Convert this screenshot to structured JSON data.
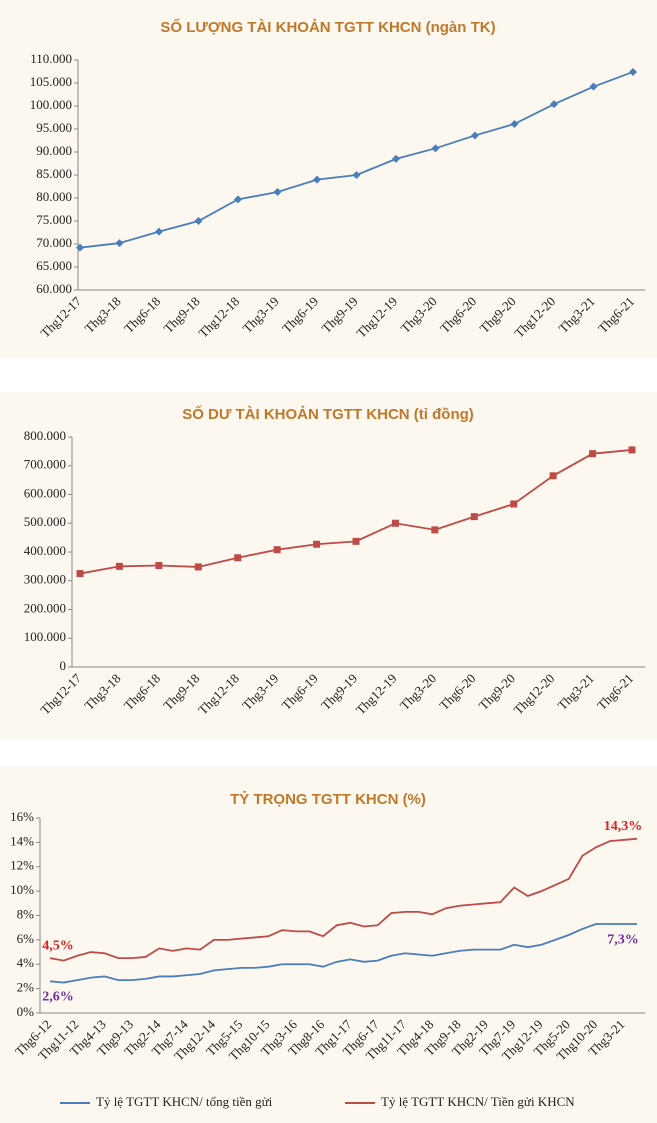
{
  "chart_data": [
    {
      "type": "line",
      "title": "SỐ LƯỢNG TÀI KHOẢN TGTT KHCN (ngàn TK)",
      "categories": [
        "Thg12-17",
        "Thg3-18",
        "Thg6-18",
        "Thg9-18",
        "Thg12-18",
        "Thg3-19",
        "Thg6-19",
        "Thg9-19",
        "Thg12-19",
        "Thg3-20",
        "Thg6-20",
        "Thg9-20",
        "Thg12-20",
        "Thg3-21",
        "Thg6-21"
      ],
      "values": [
        69200,
        70200,
        72700,
        75000,
        79700,
        81300,
        84000,
        85000,
        88500,
        90800,
        93600,
        96100,
        100400,
        104200,
        107400
      ],
      "color": "#4a7ebb",
      "marker": "diamond",
      "ylim": [
        60000,
        110000
      ],
      "yticks": [
        {
          "value": 60000,
          "label": "60.000"
        },
        {
          "value": 65000,
          "label": "65.000"
        },
        {
          "value": 70000,
          "label": "70.000"
        },
        {
          "value": 75000,
          "label": "75.000"
        },
        {
          "value": 80000,
          "label": "80.000"
        },
        {
          "value": 85000,
          "label": "85.000"
        },
        {
          "value": 90000,
          "label": "90.000"
        },
        {
          "value": 95000,
          "label": "95.000"
        },
        {
          "value": 100000,
          "label": "100.000"
        },
        {
          "value": 105000,
          "label": "105.000"
        },
        {
          "value": 110000,
          "label": "110.000"
        }
      ]
    },
    {
      "type": "line",
      "title": "SỐ DƯ TÀI KHOẢN TGTT KHCN (tỉ đồng)",
      "categories": [
        "Thg12-17",
        "Thg3-18",
        "Thg6-18",
        "Thg9-18",
        "Thg12-18",
        "Thg3-19",
        "Thg6-19",
        "Thg9-19",
        "Thg12-19",
        "Thg3-20",
        "Thg6-20",
        "Thg9-20",
        "Thg12-20",
        "Thg3-21",
        "Thg6-21"
      ],
      "values": [
        325000,
        350000,
        353000,
        348000,
        380000,
        408000,
        427000,
        437000,
        500000,
        477000,
        523000,
        567000,
        665000,
        742000,
        755000
      ],
      "color": "#be4b48",
      "marker": "square",
      "ylim": [
        0,
        800000
      ],
      "yticks": [
        0,
        {
          "value": 100000,
          "label": "100.000"
        },
        {
          "value": 200000,
          "label": "200.000"
        },
        {
          "value": 300000,
          "label": "300.000"
        },
        {
          "value": 400000,
          "label": "400.000"
        },
        {
          "value": 500000,
          "label": "500.000"
        },
        {
          "value": 600000,
          "label": "600.000"
        },
        {
          "value": 700000,
          "label": "700.000"
        },
        {
          "value": 800000,
          "label": "800.000"
        }
      ]
    },
    {
      "type": "line",
      "title": "TỶ TRỌNG TGTT KHCN (%)",
      "categories": [
        "Thg6-12",
        null,
        "Thg11-12",
        null,
        "Thg4-13",
        null,
        "Thg9-13",
        null,
        "Thg2-14",
        null,
        "Thg7-14",
        null,
        "Thg12-14",
        null,
        "Thg5-15",
        null,
        "Thg10-15",
        null,
        "Thg3-16",
        null,
        "Thg8-16",
        null,
        "Thg1-17",
        null,
        "Thg6-17",
        null,
        "Thg11-17",
        null,
        "Thg4-18",
        null,
        "Thg9-18",
        null,
        "Thg2-19",
        null,
        "Thg7-19",
        null,
        "Thg12-19",
        null,
        "Thg5-20",
        null,
        "Thg10-20",
        null,
        "Thg3-21",
        null
      ],
      "series": [
        {
          "name": "Tỷ lệ TGTT KHCN/ tổng tiền gửi",
          "color": "#4a7ebb",
          "label_color": "#7030a0",
          "values": [
            2.6,
            2.5,
            2.7,
            2.9,
            3.0,
            2.7,
            2.7,
            2.8,
            3.0,
            3.0,
            3.1,
            3.2,
            3.5,
            3.6,
            3.7,
            3.7,
            3.8,
            4.0,
            4.0,
            4.0,
            3.8,
            4.2,
            4.4,
            4.2,
            4.3,
            4.7,
            4.9,
            4.8,
            4.7,
            4.9,
            5.1,
            5.2,
            5.2,
            5.2,
            5.6,
            5.4,
            5.6,
            6.0,
            6.4,
            6.9,
            7.3,
            7.3,
            7.3,
            7.3
          ],
          "value_labels": [
            "2,6%",
            null,
            null,
            null,
            null,
            null,
            null,
            null,
            null,
            null,
            null,
            null,
            null,
            null,
            null,
            null,
            null,
            null,
            null,
            null,
            null,
            null,
            null,
            null,
            null,
            null,
            null,
            null,
            null,
            null,
            null,
            null,
            null,
            null,
            null,
            null,
            null,
            null,
            null,
            null,
            null,
            null,
            null,
            "7,3%"
          ]
        },
        {
          "name": "Tỷ lệ TGTT KHCN/ Tiền gửi KHCN",
          "color": "#be4b48",
          "label_color": "#e02020",
          "values": [
            4.5,
            4.3,
            4.7,
            5.0,
            4.9,
            4.5,
            4.5,
            4.6,
            5.3,
            5.1,
            5.3,
            5.2,
            6.0,
            6.0,
            6.1,
            6.2,
            6.3,
            6.8,
            6.7,
            6.7,
            6.3,
            7.2,
            7.4,
            7.1,
            7.2,
            8.2,
            8.3,
            8.3,
            8.1,
            8.6,
            8.8,
            8.9,
            9.0,
            9.1,
            10.3,
            9.6,
            10.0,
            10.5,
            11.0,
            12.9,
            13.6,
            14.1,
            14.2,
            14.3
          ],
          "value_labels": [
            "4,5%",
            null,
            null,
            null,
            null,
            null,
            null,
            null,
            null,
            null,
            null,
            null,
            null,
            null,
            null,
            null,
            null,
            null,
            null,
            null,
            null,
            null,
            null,
            null,
            null,
            null,
            null,
            null,
            null,
            null,
            null,
            null,
            null,
            null,
            null,
            null,
            null,
            null,
            null,
            null,
            null,
            null,
            null,
            "14,3%"
          ]
        }
      ],
      "ylim": [
        0,
        16
      ],
      "yticks": [
        {
          "value": 0,
          "label": "0%"
        },
        {
          "value": 2,
          "label": "2%"
        },
        {
          "value": 4,
          "label": "4%"
        },
        {
          "value": 6,
          "label": "6%"
        },
        {
          "value": 8,
          "label": "8%"
        },
        {
          "value": 10,
          "label": "10%"
        },
        {
          "value": 12,
          "label": "12%"
        },
        {
          "value": 14,
          "label": "14%"
        },
        {
          "value": 16,
          "label": "16%"
        }
      ],
      "legend": "bottom"
    }
  ]
}
